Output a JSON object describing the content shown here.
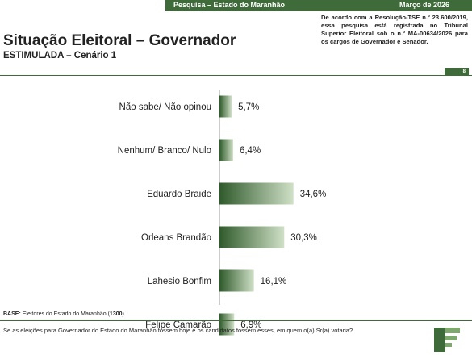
{
  "header": {
    "left": "Pesquisa – Estado do Maranhão",
    "right": "Março de 2026"
  },
  "note": "De acordo com a Resolução-TSE n.º 23.600/2019, essa pesquisa está registrada no Tribunal Superior Eleitoral sob o n.º MA-00634/2026 para os cargos de Governador e Senador.",
  "title": "Situação Eleitoral – Governador",
  "subtitle": "ESTIMULADA – Cenário 1",
  "page_number": "8",
  "base": {
    "label": "BASE:",
    "text": "Eleitores do Estado do Maranhão (",
    "count": "1300",
    "close": ")"
  },
  "question": "Se as eleições para Governador do Estado do Maranhão fossem hoje e os candidatos fossem esses, em quem o(a) Sr(a) votaria?",
  "colors": {
    "bar_dark": "#2f5a2b",
    "bar_light": "#cfe0c6",
    "accent": "#3f6b3a"
  },
  "chart_data": {
    "type": "bar",
    "orientation": "horizontal",
    "categories": [
      "Não sabe/ Não opinou",
      "Nenhum/ Branco/ Nulo",
      "Eduardo Braide",
      "Orleans Brandão",
      "Lahesio Bonfim",
      "Felipe Camarão"
    ],
    "values": [
      5.7,
      6.4,
      34.6,
      30.3,
      16.1,
      6.9
    ],
    "value_labels": [
      "5,7%",
      "6,4%",
      "34,6%",
      "30,3%",
      "16,1%",
      "6,9%"
    ],
    "unit": "%",
    "xlim": [
      0,
      40
    ],
    "grid": false,
    "legend": "none"
  }
}
